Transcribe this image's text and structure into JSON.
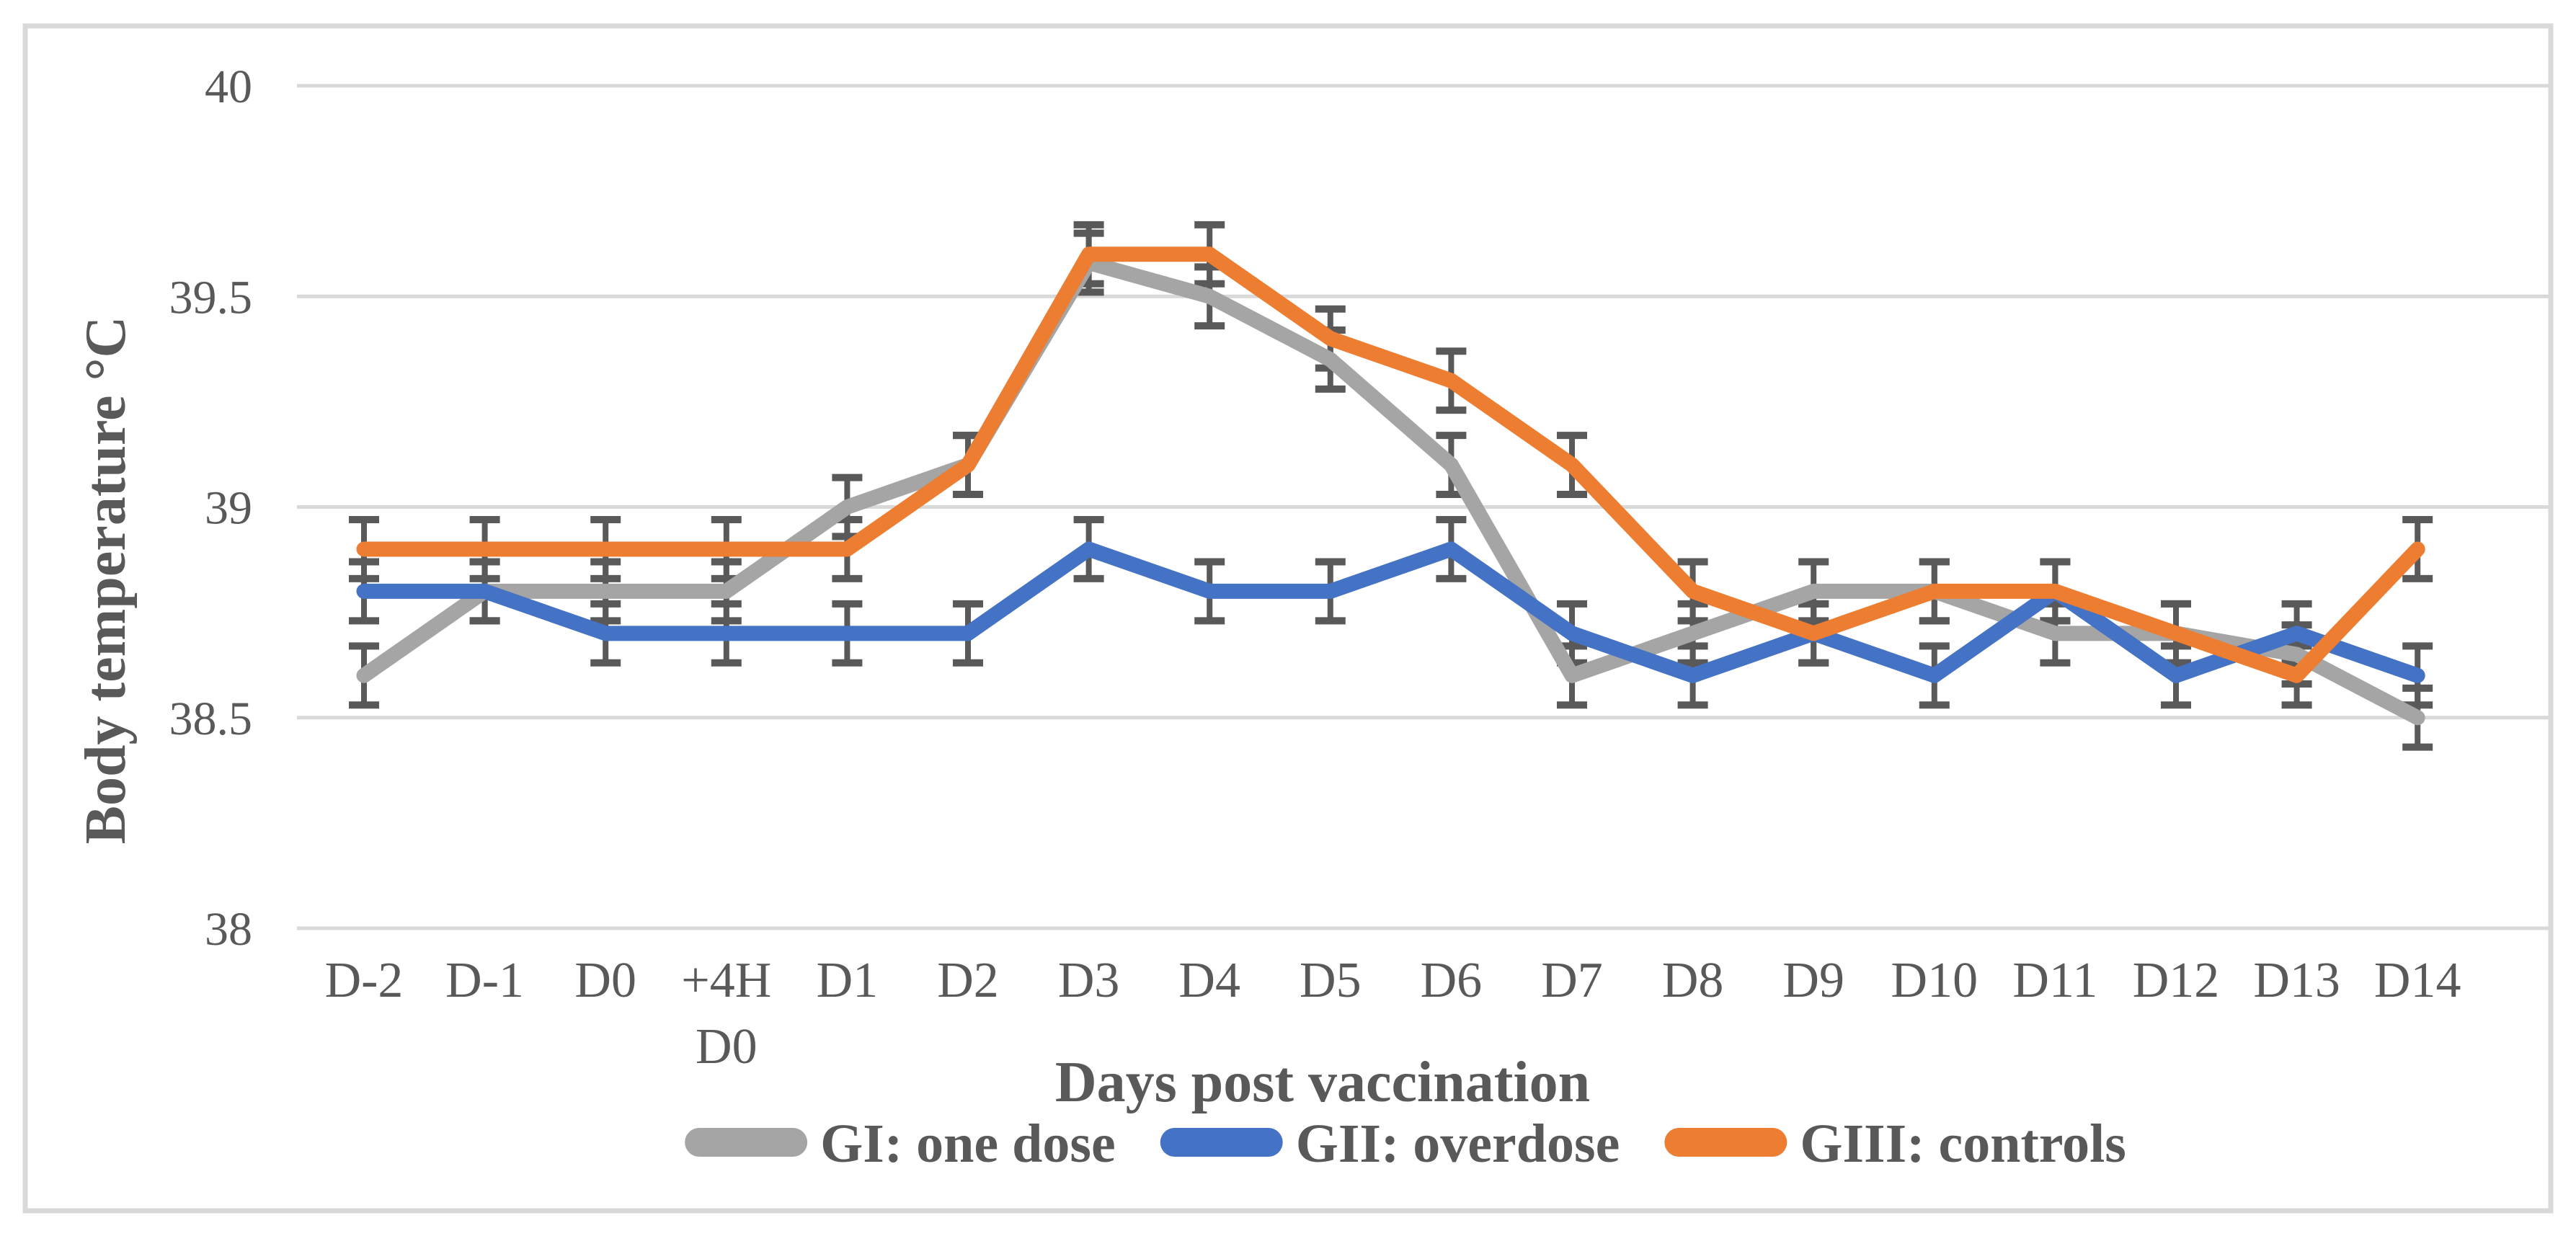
{
  "chart_data": {
    "type": "line",
    "title": "",
    "xlabel": "Days post vaccination",
    "ylabel": "Body temperature °C",
    "ylim": [
      38,
      40
    ],
    "yticks": [
      {
        "v": 40,
        "label": "40"
      },
      {
        "v": 39.5,
        "label": "39.5"
      },
      {
        "v": 39,
        "label": "39"
      },
      {
        "v": 38.5,
        "label": "38.5"
      },
      {
        "v": 38,
        "label": "38"
      }
    ],
    "grid": true,
    "legend_position": "bottom",
    "categories": [
      {
        "line1": "D-2"
      },
      {
        "line1": "D-1"
      },
      {
        "line1": "D0"
      },
      {
        "line1": "+4H",
        "line2": "D0"
      },
      {
        "line1": "D1"
      },
      {
        "line1": "D2"
      },
      {
        "line1": "D3"
      },
      {
        "line1": "D4"
      },
      {
        "line1": "D5"
      },
      {
        "line1": "D6"
      },
      {
        "line1": "D7"
      },
      {
        "line1": "D8"
      },
      {
        "line1": "D9"
      },
      {
        "line1": "D10"
      },
      {
        "line1": "D11"
      },
      {
        "line1": "D12"
      },
      {
        "line1": "D13"
      },
      {
        "line1": "D14"
      }
    ],
    "series": [
      {
        "name": "GI: one dose",
        "color": "#A5A5A5",
        "error": 0.07,
        "values": [
          38.6,
          38.8,
          38.8,
          38.8,
          39.0,
          39.1,
          39.58,
          39.5,
          39.35,
          39.1,
          38.6,
          38.7,
          38.8,
          38.8,
          38.7,
          38.7,
          38.65,
          38.5
        ]
      },
      {
        "name": "GII: overdose",
        "color": "#4472C4",
        "error": 0.07,
        "values": [
          38.8,
          38.8,
          38.7,
          38.7,
          38.7,
          38.7,
          38.9,
          38.8,
          38.8,
          38.9,
          38.7,
          38.6,
          38.7,
          38.6,
          38.8,
          38.6,
          38.7,
          38.6
        ]
      },
      {
        "name": "GIII: controls",
        "color": "#ED7D31",
        "error": 0.07,
        "values": [
          38.9,
          38.9,
          38.9,
          38.9,
          38.9,
          39.1,
          39.6,
          39.6,
          39.4,
          39.3,
          39.1,
          38.8,
          38.7,
          38.8,
          38.8,
          38.7,
          38.6,
          38.9
        ]
      }
    ],
    "error_bar_color": "#595959"
  }
}
